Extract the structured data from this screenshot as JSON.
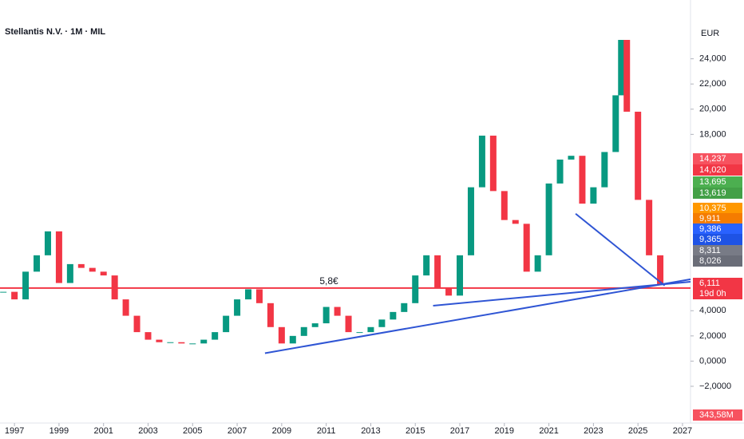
{
  "chart_data": {
    "type": "candlestick",
    "title": "Stellantis N.V. · 1M · MIL",
    "currency": "EUR",
    "x": [
      1996.5,
      1997.0,
      1997.5,
      1998.0,
      1998.5,
      1999.0,
      1999.5,
      2000.0,
      2000.5,
      2001.0,
      2001.5,
      2002.0,
      2002.5,
      2003.0,
      2003.5,
      2004.0,
      2004.5,
      2005.0,
      2005.5,
      2006.0,
      2006.5,
      2007.0,
      2007.5,
      2008.0,
      2008.5,
      2009.0,
      2009.5,
      2010.0,
      2010.5,
      2011.0,
      2011.5,
      2012.0,
      2012.5,
      2013.0,
      2013.5,
      2014.0,
      2014.5,
      2015.0,
      2015.5,
      2016.0,
      2016.5,
      2017.0,
      2017.5,
      2018.0,
      2018.5,
      2019.0,
      2019.5,
      2020.0,
      2020.5,
      2021.0,
      2021.5,
      2022.0,
      2022.5,
      2023.0,
      2023.5,
      2024.0,
      2024.25,
      2024.5,
      2025.0,
      2025.5,
      2026.0
    ],
    "close": [
      5.5,
      4.9,
      7.1,
      8.4,
      10.3,
      6.2,
      7.7,
      7.4,
      7.1,
      6.8,
      4.9,
      3.6,
      2.3,
      1.7,
      1.5,
      1.5,
      1.4,
      1.4,
      1.7,
      2.3,
      3.6,
      4.9,
      5.7,
      4.6,
      2.7,
      1.4,
      2.0,
      2.7,
      3.0,
      4.3,
      3.6,
      2.3,
      2.3,
      2.7,
      3.3,
      3.9,
      4.6,
      6.8,
      8.4,
      5.8,
      5.2,
      8.4,
      13.8,
      17.9,
      13.5,
      11.2,
      10.9,
      7.1,
      8.4,
      14.1,
      16.0,
      16.3,
      12.5,
      13.8,
      16.6,
      21.1,
      25.5,
      19.8,
      12.8,
      8.4,
      6.1
    ],
    "up_color": "#089981",
    "down_color": "#f23645",
    "xlim": [
      1996.35,
      2027.36
    ],
    "xticks": [
      1997,
      1999,
      2001,
      2003,
      2005,
      2007,
      2009,
      2011,
      2013,
      2015,
      2017,
      2019,
      2021,
      2023,
      2025,
      2027
    ],
    "ylim": [
      -4.6,
      27.4
    ],
    "yticks": [
      {
        "value": 24,
        "label": "24,000"
      },
      {
        "value": 22,
        "label": "22,000"
      },
      {
        "value": 20,
        "label": "20,000"
      },
      {
        "value": 18,
        "label": "18,000"
      },
      {
        "value": 4,
        "label": "4,0000"
      },
      {
        "value": 2,
        "label": "2,0000"
      },
      {
        "value": 0,
        "label": "0,0000"
      },
      {
        "value": -2,
        "label": "−2,0000"
      }
    ],
    "support": {
      "value": 5.8,
      "label": "5,8€",
      "color": "#f23645"
    },
    "trendlines": [
      {
        "x": [
          2008.25,
          2027.36
        ],
        "y": [
          0.63,
          6.5
        ]
      },
      {
        "x": [
          2015.8,
          2027.36
        ],
        "y": [
          4.4,
          6.3
        ]
      },
      {
        "x": [
          2022.2,
          2026.2
        ],
        "y": [
          11.7,
          6.0
        ]
      }
    ],
    "trend_color": "#2f55d4",
    "price_badges": [
      {
        "label": "14,237",
        "color": "#f7525f"
      },
      {
        "label": "14,020",
        "color": "#f23645"
      },
      {
        "label": "13,695",
        "color": "#4caf50"
      },
      {
        "label": "13,619",
        "color": "#43a047"
      },
      {
        "label": "10,375",
        "color": "#ff9800"
      },
      {
        "label": "9,911",
        "color": "#f57c00"
      },
      {
        "label": "9,386",
        "color": "#2962ff"
      },
      {
        "label": "9,365",
        "color": "#1e53e5"
      },
      {
        "label": "8,311",
        "color": "#787b86"
      },
      {
        "label": "8,026",
        "color": "#6a6d78"
      },
      {
        "label": "6,111",
        "color": "#f23645"
      },
      {
        "label": "19d 0h",
        "color": "#f23645"
      }
    ],
    "volume_badge": {
      "label": "343,58M",
      "color": "#f7525f"
    }
  }
}
